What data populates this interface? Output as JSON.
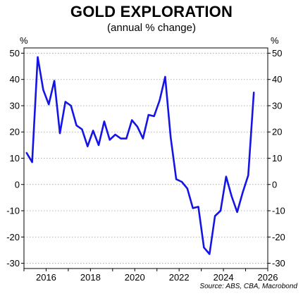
{
  "header": {
    "title": "GOLD EXPLORATION",
    "subtitle": "(annual % change)"
  },
  "source": "Source: ABS, CBA, Macrobond",
  "chart_data": {
    "type": "line",
    "title": "GOLD EXPLORATION",
    "subtitle": "(annual % change)",
    "y_unit_left": "%",
    "y_unit_right": "%",
    "xlim": [
      2015.0,
      2026.0
    ],
    "ylim": [
      -32,
      52
    ],
    "x_ticks": [
      2016,
      2018,
      2020,
      2022,
      2024,
      2026
    ],
    "x_tick_labels": [
      "2016",
      "2018",
      "2020",
      "2022",
      "2024",
      "2026"
    ],
    "y_ticks": [
      -30,
      -20,
      -10,
      0,
      10,
      20,
      30,
      40,
      50
    ],
    "y_tick_labels": [
      "-30",
      "-20",
      "-10",
      "0",
      "10",
      "20",
      "30",
      "40",
      "50"
    ],
    "grid": "horizontal dotted",
    "line_color": "#1414e6",
    "series": [
      {
        "x": [
          2015.12,
          2015.37,
          2015.62,
          2015.87,
          2016.12,
          2016.37,
          2016.62,
          2016.87,
          2017.12,
          2017.37,
          2017.62,
          2017.87,
          2018.12,
          2018.37,
          2018.62,
          2018.87,
          2019.12,
          2019.37,
          2019.62,
          2019.87,
          2020.12,
          2020.37,
          2020.62,
          2020.87,
          2021.12,
          2021.37,
          2021.62,
          2021.87,
          2022.12,
          2022.37,
          2022.62,
          2022.87,
          2023.12,
          2023.37,
          2023.62,
          2023.87,
          2024.12,
          2024.37,
          2024.62,
          2024.87,
          2025.12,
          2025.37
        ],
        "values": [
          12,
          8.5,
          48.5,
          36,
          30.5,
          39.5,
          19.5,
          31.5,
          30,
          22.5,
          21,
          14.5,
          20.5,
          15,
          24,
          17,
          19,
          17.5,
          17.5,
          24.5,
          22,
          17.5,
          26.5,
          26,
          32,
          41,
          18,
          2,
          1,
          -1.5,
          -9,
          -8.5,
          -24,
          -26.5,
          -12,
          -10,
          3,
          -4.5,
          -10.5,
          -3,
          3.5,
          35
        ]
      }
    ]
  }
}
